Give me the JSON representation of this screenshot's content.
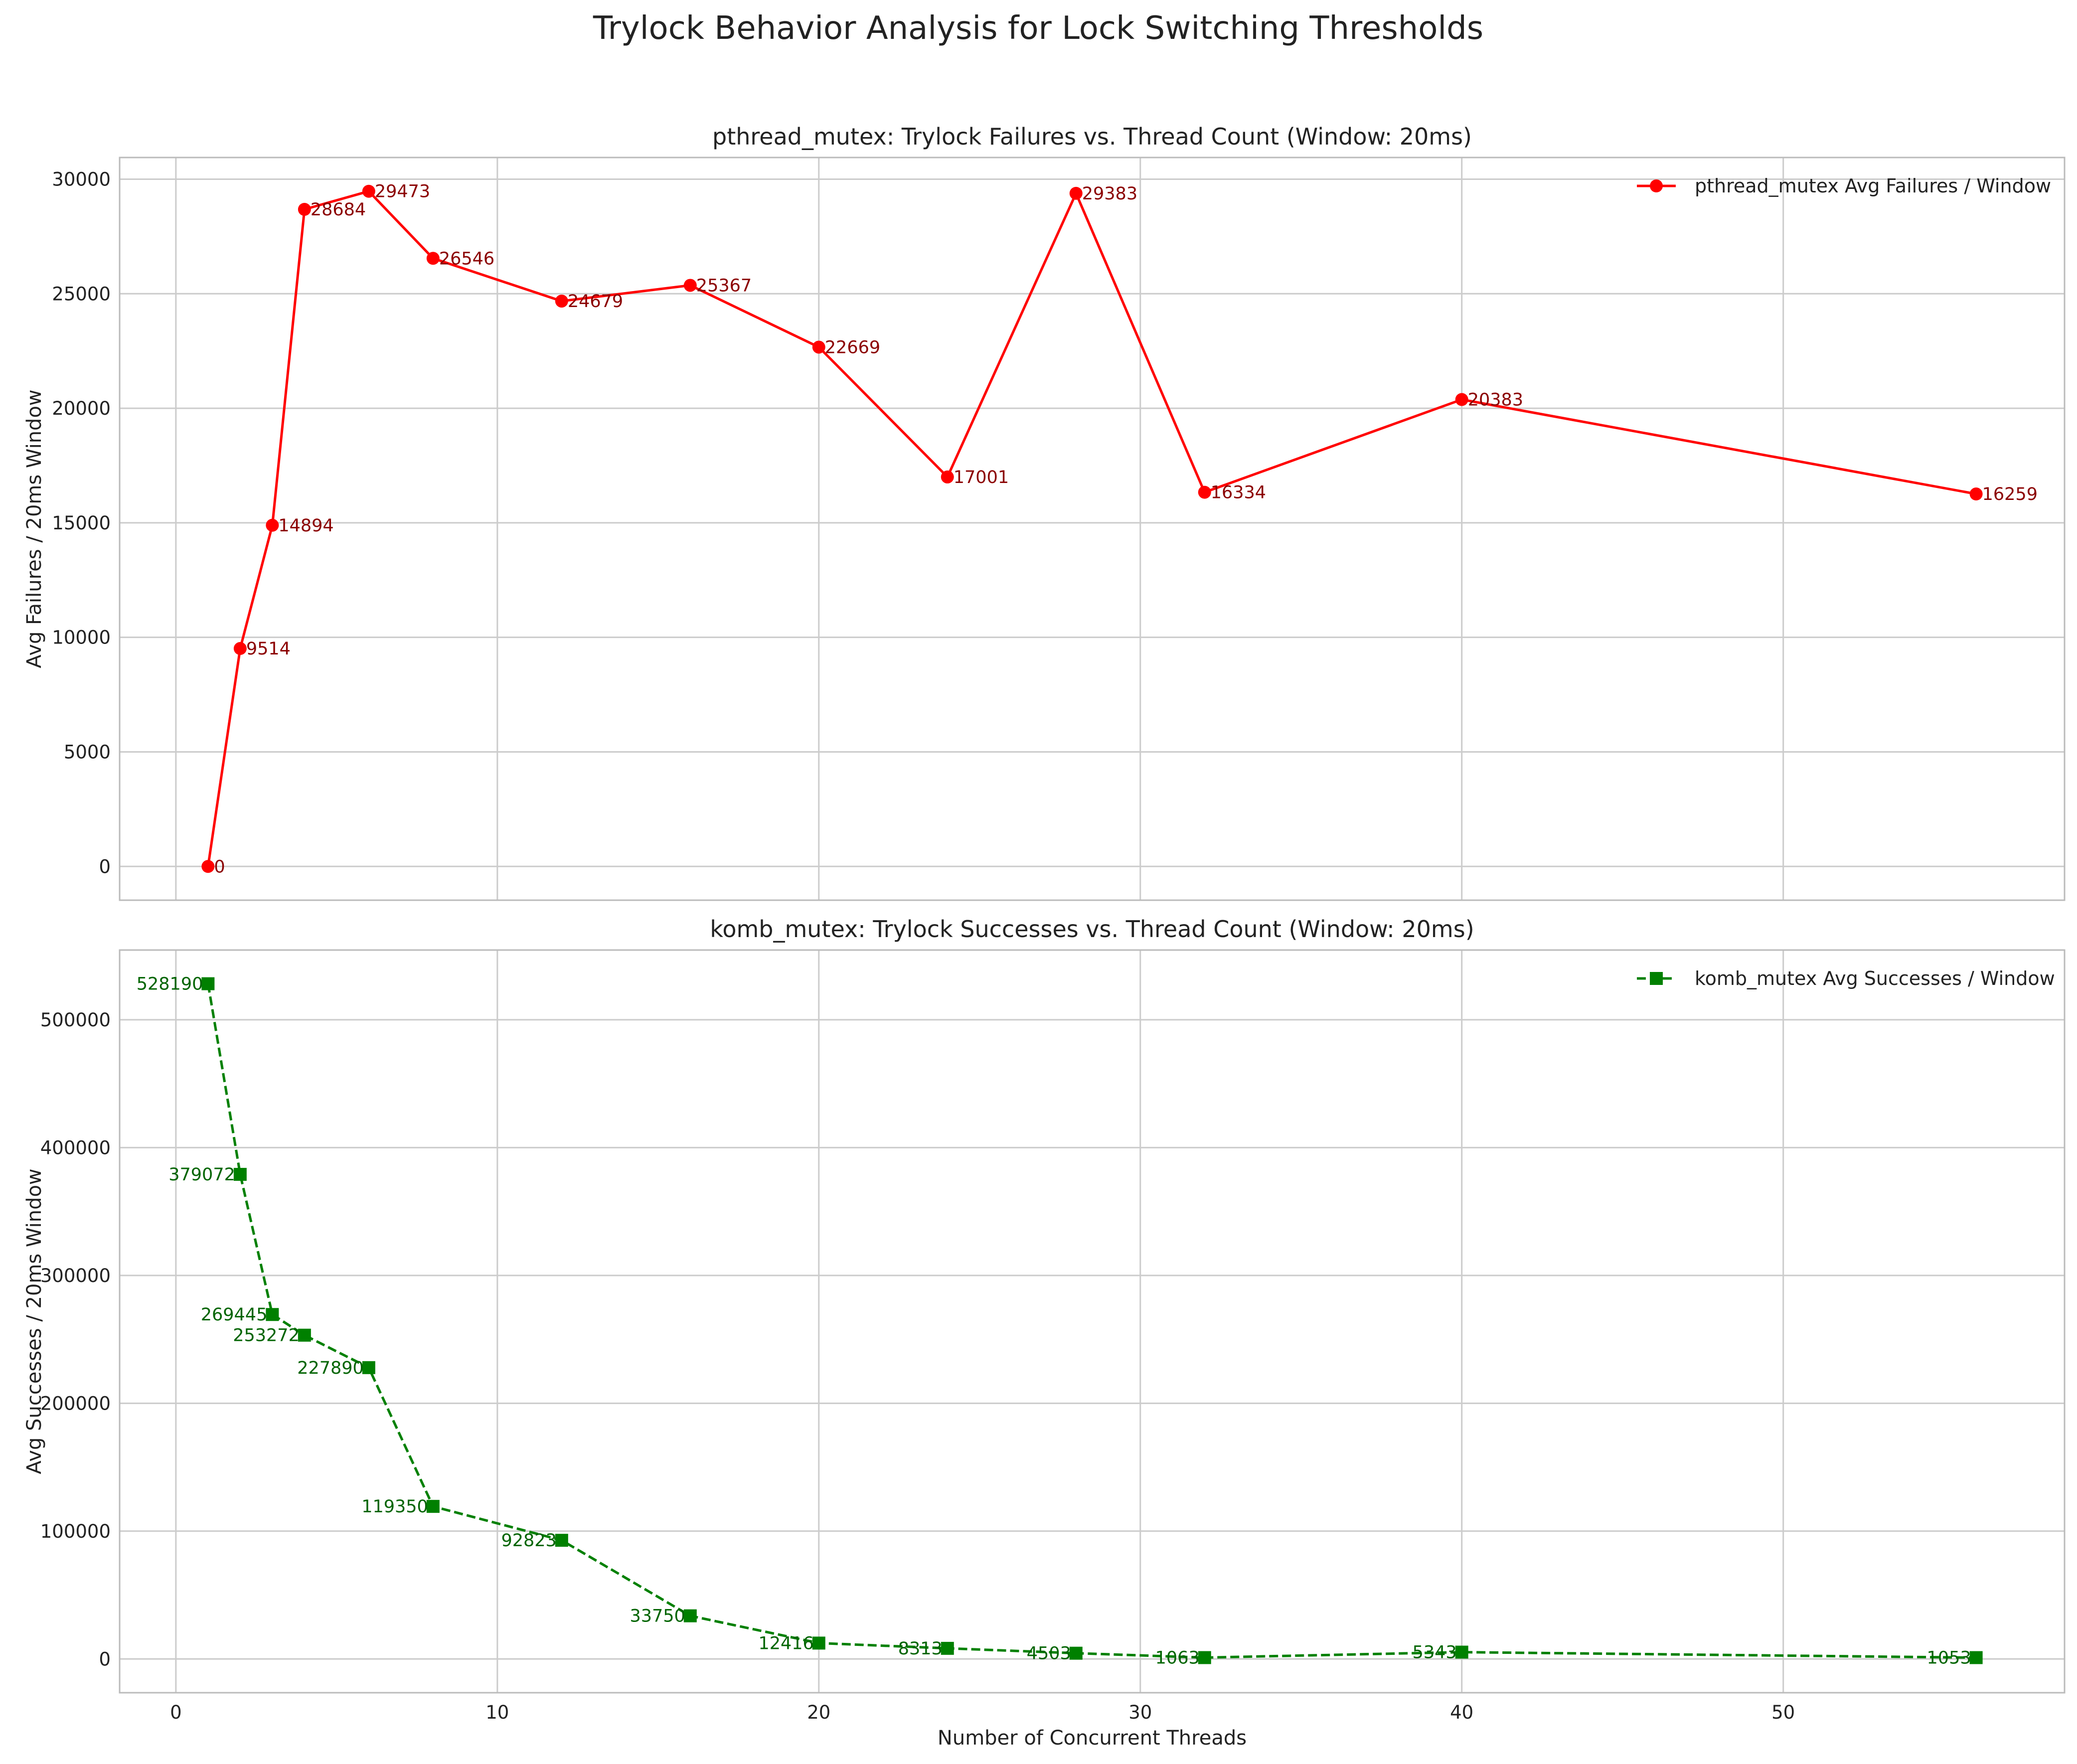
{
  "title": "Trylock Behavior Analysis for Lock Switching Thresholds",
  "xlabel": "Number of Concurrent Threads",
  "chart_data": [
    {
      "type": "line",
      "title": "pthread_mutex: Trylock Failures vs. Thread Count (Window: 20ms)",
      "xlabel": "",
      "ylabel": "Avg Failures / 20ms Window",
      "xlim": [
        -1.75,
        58.75
      ],
      "ylim": [
        -1474,
        30947
      ],
      "xticks": [
        0,
        10,
        20,
        30,
        40,
        50
      ],
      "yticks": [
        0,
        5000,
        10000,
        15000,
        20000,
        25000,
        30000
      ],
      "grid": true,
      "legend": "top-right",
      "series": [
        {
          "name": "pthread_mutex Avg Failures / Window",
          "color": "#ff0000",
          "label_color": "#8b0000",
          "marker": "circle",
          "line": "solid",
          "x": [
            1,
            2,
            3,
            4,
            6,
            8,
            12,
            16,
            20,
            24,
            28,
            32,
            40,
            56
          ],
          "y": [
            0,
            9514,
            14894,
            28684,
            29473,
            26546,
            24679,
            25367,
            22669,
            17001,
            29383,
            16334,
            20383,
            16259
          ],
          "labels": [
            "0",
            "9514",
            "14894",
            "28684",
            "29473",
            "26546",
            "24679",
            "25367",
            "22669",
            "17001",
            "29383",
            "16334",
            "20383",
            "16259"
          ]
        }
      ]
    },
    {
      "type": "line",
      "title": "komb_mutex: Trylock Successes vs. Thread Count (Window: 20ms)",
      "xlabel": "Number of Concurrent Threads",
      "ylabel": "Avg Successes / 20ms Window",
      "xlim": [
        -1.75,
        58.75
      ],
      "ylim": [
        -26409,
        554547
      ],
      "xticks": [
        0,
        10,
        20,
        30,
        40,
        50
      ],
      "yticks": [
        0,
        100000,
        200000,
        300000,
        400000,
        500000
      ],
      "grid": true,
      "legend": "top-right",
      "series": [
        {
          "name": "komb_mutex Avg Successes / Window",
          "color": "#008000",
          "label_color": "#006400",
          "marker": "square",
          "line": "dashed",
          "x": [
            1,
            2,
            3,
            4,
            6,
            8,
            12,
            16,
            20,
            24,
            28,
            32,
            40,
            56
          ],
          "y": [
            528190,
            379072,
            269445,
            253272,
            227890,
            119350,
            92823,
            33750,
            12416,
            8313,
            4503,
            1063,
            5343,
            1053
          ],
          "labels": [
            "528190",
            "379072",
            "269445",
            "253272",
            "227890",
            "119350",
            "92823",
            "33750",
            "12416",
            "8313",
            "4503",
            "1063",
            "5343",
            "1053"
          ]
        }
      ]
    }
  ]
}
